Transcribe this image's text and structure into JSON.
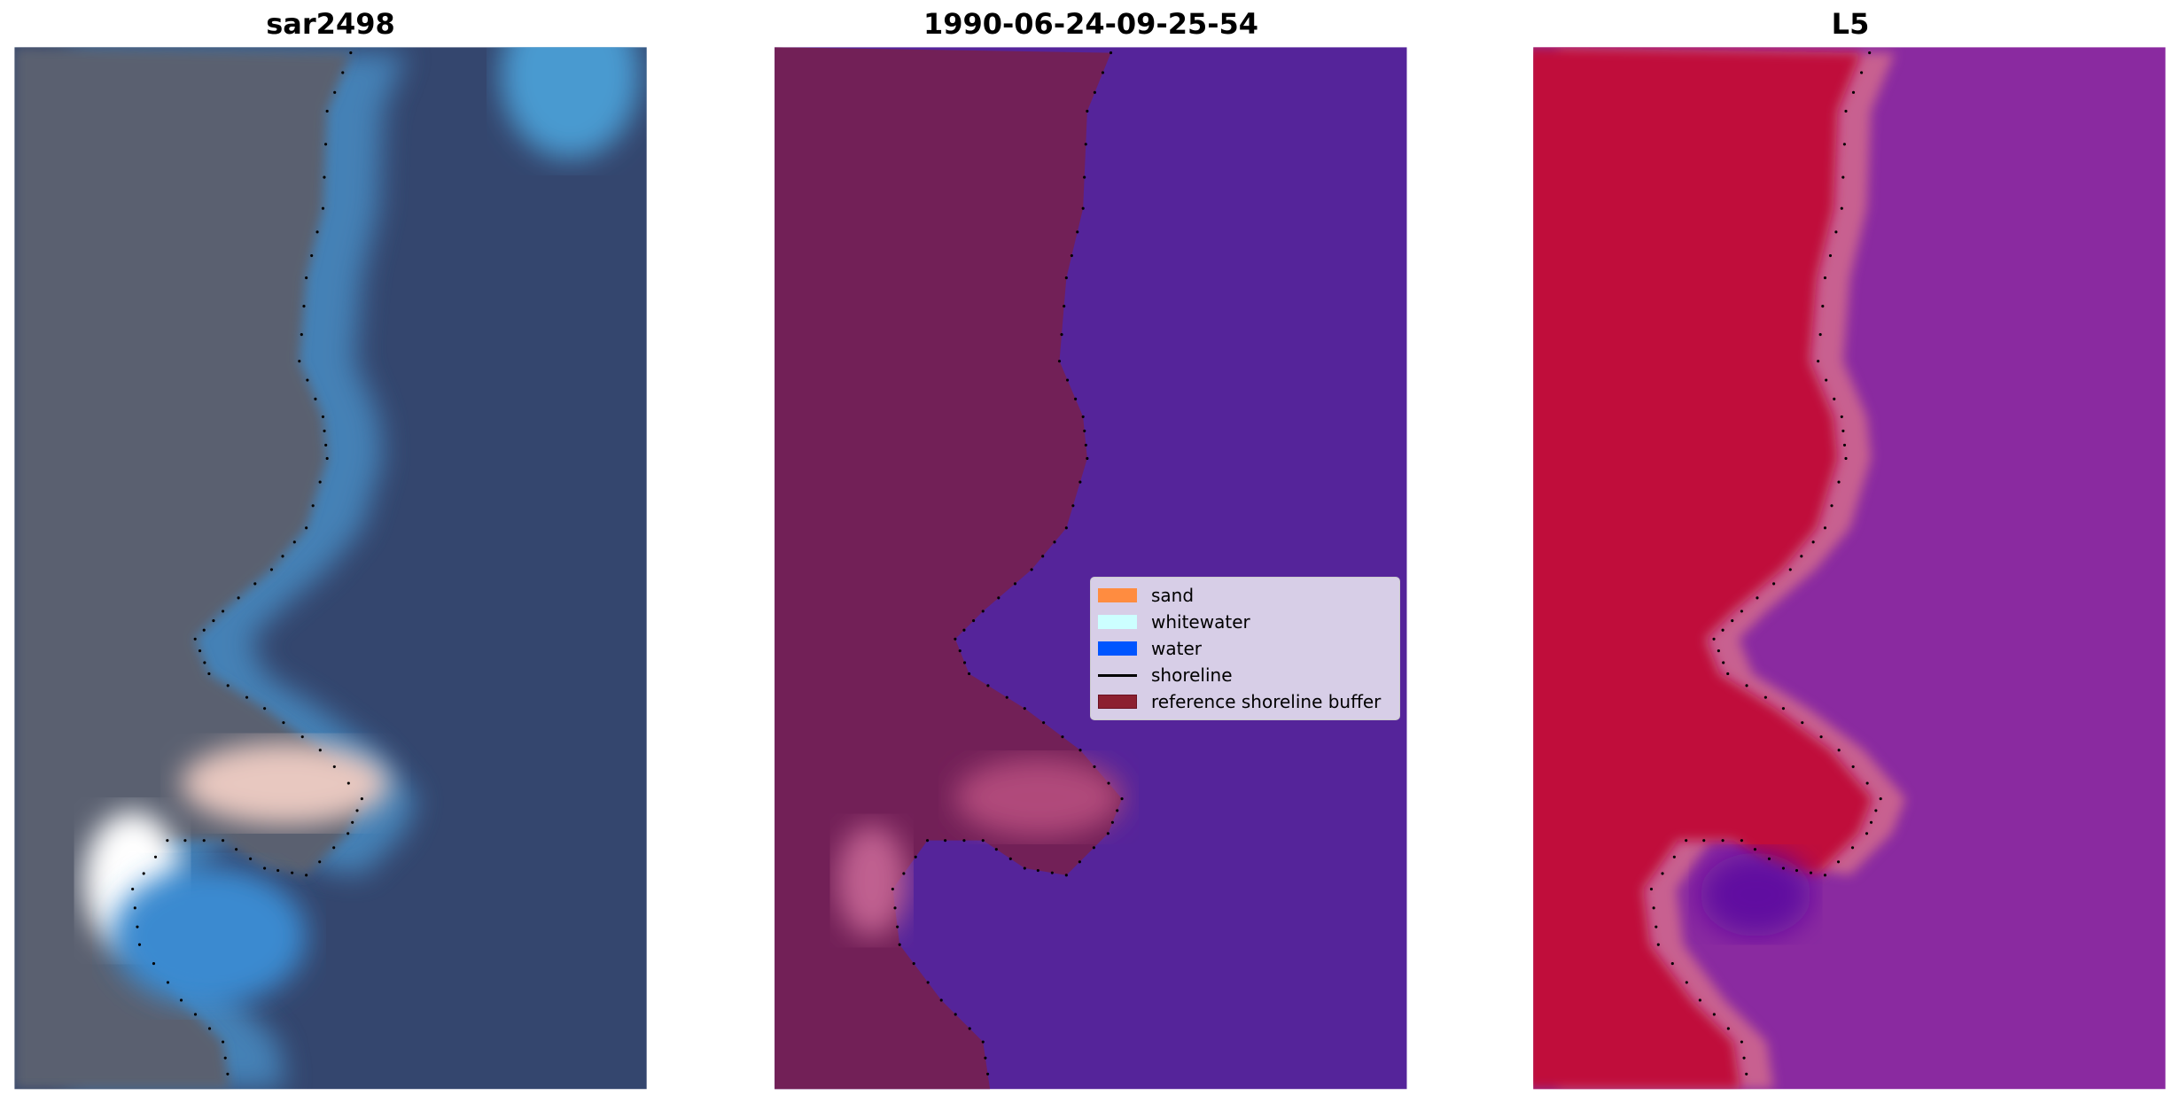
{
  "panels": [
    {
      "title": "sar2498",
      "content": "RGB satellite image",
      "colors": {
        "land": "#5a6070",
        "water": "#34466e",
        "surf": "#4a90c8",
        "sand": "#e8c8c0"
      }
    },
    {
      "title": "1990-06-24-09-25-54",
      "content": "classified image",
      "colors": {
        "land": "#722057",
        "water": "#55249a",
        "sand": "#b04a7a"
      }
    },
    {
      "title": "L5",
      "content": "classified overlay",
      "colors": {
        "land": "#c0083a",
        "water": "#8a2aa0",
        "band": "#c86090"
      }
    }
  ],
  "legend": {
    "items": [
      {
        "label": "sand",
        "color": "#ff8c40",
        "type": "patch"
      },
      {
        "label": "whitewater",
        "color": "#ccffff",
        "type": "patch"
      },
      {
        "label": "water",
        "color": "#0055ff",
        "type": "patch"
      },
      {
        "label": "shoreline",
        "color": "#000000",
        "type": "line"
      },
      {
        "label": "reference shoreline buffer",
        "color": "#8c2030",
        "type": "patch"
      }
    ]
  }
}
